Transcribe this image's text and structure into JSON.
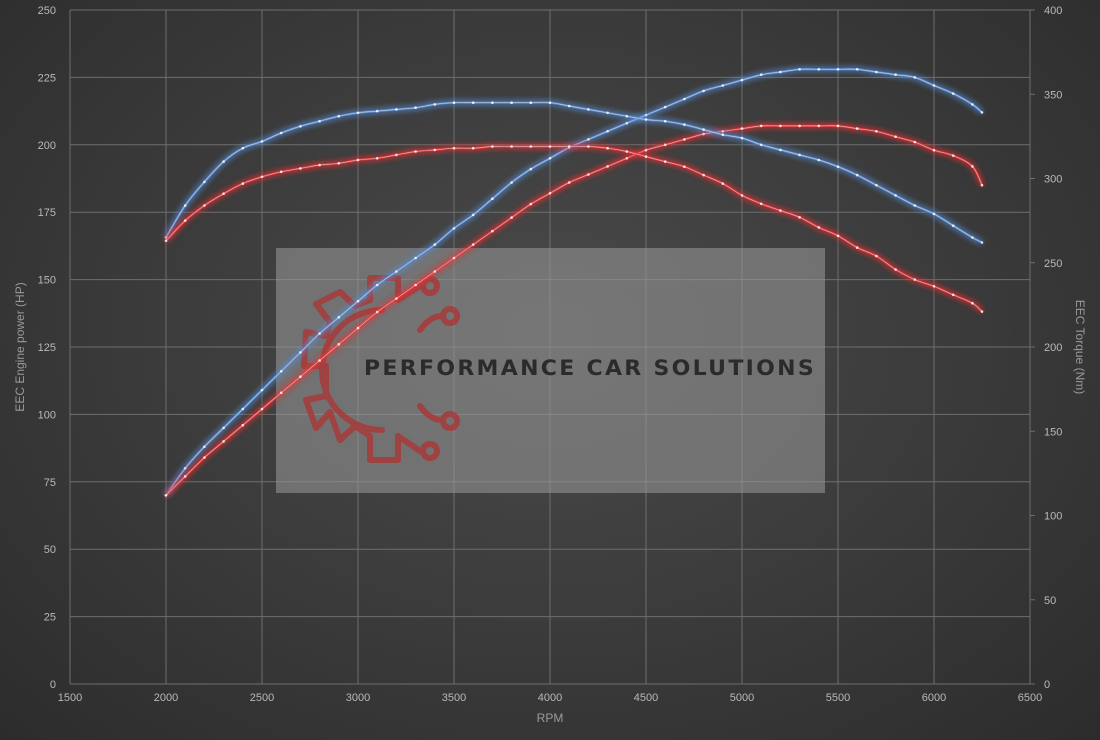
{
  "chart_data": {
    "type": "line",
    "xlabel": "RPM",
    "ylabel_left": "EEC Engine power (HP)",
    "ylabel_right": "EEC Torque (Nm)",
    "xlim": [
      1500,
      6500
    ],
    "ylim_left": [
      0,
      250
    ],
    "ylim_right": [
      0,
      400
    ],
    "x_ticks": [
      1500,
      2000,
      2500,
      3000,
      3500,
      4000,
      4500,
      5000,
      5500,
      6000,
      6500
    ],
    "y_left_ticks": [
      0,
      25,
      50,
      75,
      100,
      125,
      150,
      175,
      200,
      225,
      250
    ],
    "y_right_ticks": [
      0,
      50,
      100,
      150,
      200,
      250,
      300,
      350,
      400
    ],
    "grid": true,
    "series": [
      {
        "axis": "left",
        "color": "#5b8fd6",
        "x": [
          2000,
          2100,
          2200,
          2300,
          2400,
          2500,
          2600,
          2700,
          2800,
          2900,
          3000,
          3100,
          3200,
          3300,
          3400,
          3500,
          3600,
          3700,
          3800,
          3900,
          4000,
          4100,
          4200,
          4300,
          4400,
          4500,
          4600,
          4700,
          4800,
          4900,
          5000,
          5100,
          5200,
          5300,
          5400,
          5500,
          5600,
          5700,
          5800,
          5900,
          6000,
          6100,
          6200,
          6250
        ],
        "values": [
          70,
          80,
          88,
          95,
          102,
          109,
          116,
          123,
          130,
          136,
          142,
          148,
          153,
          158,
          163,
          169,
          174,
          180,
          186,
          191,
          195,
          199,
          202,
          205,
          208,
          211,
          214,
          217,
          220,
          222,
          224,
          226,
          227,
          228,
          228,
          228,
          228,
          227,
          226,
          225,
          222,
          219,
          215,
          212
        ]
      },
      {
        "axis": "left",
        "color": "#e8393a",
        "x": [
          2000,
          2100,
          2200,
          2300,
          2400,
          2500,
          2600,
          2700,
          2800,
          2900,
          3000,
          3100,
          3200,
          3300,
          3400,
          3500,
          3600,
          3700,
          3800,
          3900,
          4000,
          4100,
          4200,
          4300,
          4400,
          4500,
          4600,
          4700,
          4800,
          4900,
          5000,
          5100,
          5200,
          5300,
          5400,
          5500,
          5600,
          5700,
          5800,
          5900,
          6000,
          6100,
          6200,
          6250
        ],
        "values": [
          70,
          77,
          84,
          90,
          96,
          102,
          108,
          114,
          120,
          126,
          132,
          138,
          143,
          148,
          153,
          158,
          163,
          168,
          173,
          178,
          182,
          186,
          189,
          192,
          195,
          198,
          200,
          202,
          204,
          205,
          206,
          207,
          207,
          207,
          207,
          207,
          206,
          205,
          203,
          201,
          198,
          196,
          192,
          185
        ]
      },
      {
        "axis": "right",
        "color": "#5b8fd6",
        "x": [
          2000,
          2100,
          2200,
          2300,
          2400,
          2500,
          2600,
          2700,
          2800,
          2900,
          3000,
          3100,
          3200,
          3300,
          3400,
          3500,
          3600,
          3700,
          3800,
          3900,
          4000,
          4100,
          4200,
          4300,
          4400,
          4500,
          4600,
          4700,
          4800,
          4900,
          5000,
          5100,
          5200,
          5300,
          5400,
          5500,
          5600,
          5700,
          5800,
          5900,
          6000,
          6100,
          6200,
          6250
        ],
        "values": [
          265,
          284,
          298,
          310,
          318,
          322,
          327,
          331,
          334,
          337,
          339,
          340,
          341,
          342,
          344,
          345,
          345,
          345,
          345,
          345,
          345,
          343,
          341,
          339,
          337,
          335,
          334,
          332,
          329,
          326,
          324,
          320,
          317,
          314,
          311,
          307,
          302,
          296,
          290,
          284,
          279,
          272,
          265,
          262
        ]
      },
      {
        "axis": "right",
        "color": "#e8393a",
        "x": [
          2000,
          2100,
          2200,
          2300,
          2400,
          2500,
          2600,
          2700,
          2800,
          2900,
          3000,
          3100,
          3200,
          3300,
          3400,
          3500,
          3600,
          3700,
          3800,
          3900,
          4000,
          4100,
          4200,
          4300,
          4400,
          4500,
          4600,
          4700,
          4800,
          4900,
          5000,
          5100,
          5200,
          5300,
          5400,
          5500,
          5600,
          5700,
          5800,
          5900,
          6000,
          6100,
          6200,
          6250
        ],
        "values": [
          263,
          275,
          284,
          291,
          297,
          301,
          304,
          306,
          308,
          309,
          311,
          312,
          314,
          316,
          317,
          318,
          318,
          319,
          319,
          319,
          319,
          319,
          319,
          318,
          316,
          313,
          310,
          307,
          302,
          297,
          290,
          285,
          281,
          277,
          271,
          266,
          259,
          254,
          246,
          240,
          236,
          231,
          226,
          221
        ]
      }
    ]
  },
  "watermark": {
    "text": "PERFORMANCE CAR SOLUTIONS",
    "text_color": "#2b2b2b",
    "logo_icon": "gear-circuit-icon",
    "logo_color": "#a83a3a",
    "panel_color": "#9a9a9a"
  }
}
